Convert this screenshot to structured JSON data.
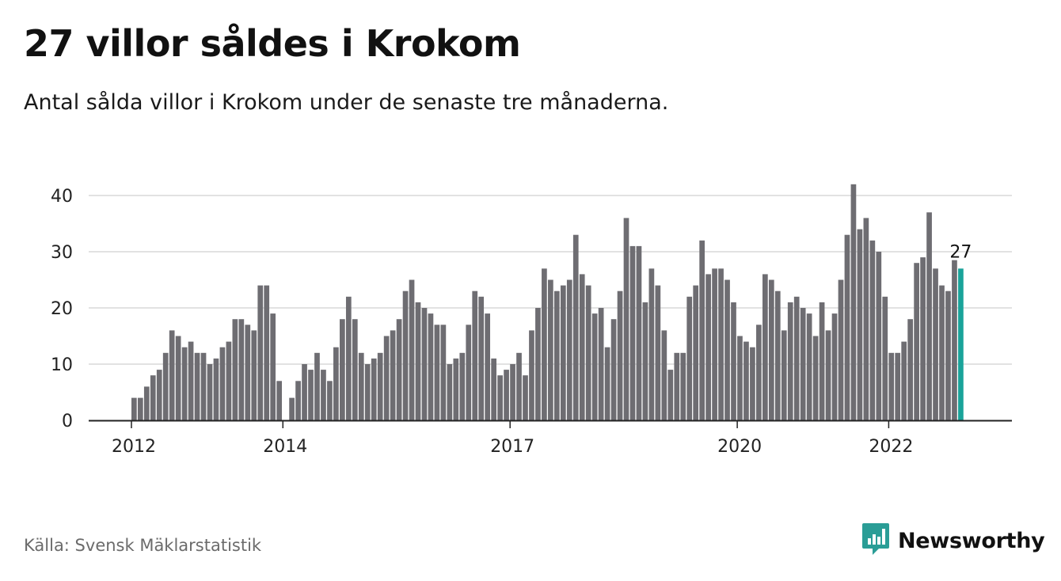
{
  "header": {
    "title": "27 villor såldes i Krokom",
    "subtitle": "Antal sålda villor i Krokom under de senaste tre månaderna."
  },
  "footer": {
    "source": "Källa: Svensk Mäklarstatistik",
    "brand": "Newsworthy"
  },
  "colors": {
    "bar": "#6e6d72",
    "highlight": "#1aa39a",
    "grid": "#d9d9d9",
    "axis": "#222222",
    "brand": "#2a9d96"
  },
  "icons": {
    "logo": "newsworthy-logo-icon"
  },
  "chart_data": {
    "type": "bar",
    "title": "27 villor såldes i Krokom",
    "subtitle": "Antal sålda villor i Krokom under de senaste tre månaderna.",
    "xlabel": "",
    "ylabel": "",
    "ylim": [
      0,
      40
    ],
    "yticks": [
      0,
      10,
      20,
      30,
      40
    ],
    "grid": true,
    "start": "2012-01",
    "end": "2022-12",
    "x_ticks": [
      {
        "label": "2012",
        "index": 0
      },
      {
        "label": "2014",
        "index": 24
      },
      {
        "label": "2017",
        "index": 60
      },
      {
        "label": "2020",
        "index": 96
      },
      {
        "label": "2022",
        "index": 120
      }
    ],
    "values": [
      4,
      4,
      6,
      8,
      9,
      12,
      16,
      15,
      13,
      14,
      12,
      12,
      10,
      11,
      13,
      14,
      18,
      18,
      17,
      16,
      24,
      24,
      19,
      7,
      null,
      4,
      7,
      10,
      9,
      12,
      9,
      7,
      13,
      18,
      22,
      18,
      12,
      10,
      11,
      12,
      15,
      16,
      18,
      23,
      25,
      21,
      20,
      19,
      17,
      17,
      10,
      11,
      12,
      17,
      23,
      22,
      19,
      11,
      8,
      9,
      10,
      12,
      8,
      16,
      20,
      27,
      25,
      23,
      24,
      25,
      33,
      26,
      24,
      19,
      20,
      13,
      18,
      23,
      36,
      31,
      31,
      21,
      27,
      24,
      16,
      9,
      12,
      12,
      22,
      24,
      32,
      26,
      27,
      27,
      25,
      21,
      15,
      14,
      13,
      17,
      26,
      25,
      23,
      16,
      21,
      22,
      20,
      19,
      15,
      21,
      16,
      19,
      25,
      33,
      42,
      34,
      36,
      32,
      30,
      22,
      12,
      12,
      14,
      18,
      28,
      29,
      37,
      27,
      24,
      23,
      28.5,
      27
    ],
    "highlight_index": 131,
    "annotation": {
      "label": "27",
      "index": 131
    }
  }
}
